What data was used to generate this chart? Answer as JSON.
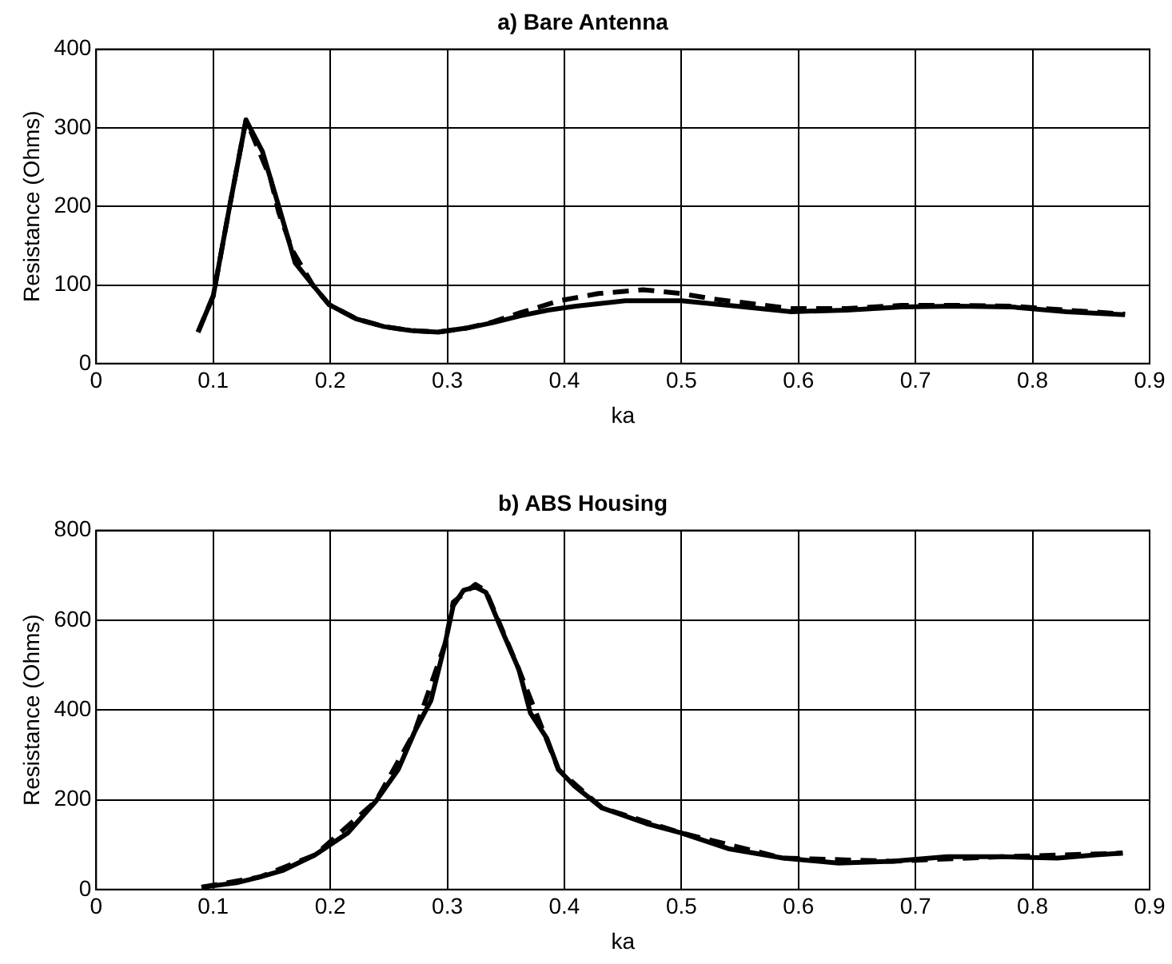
{
  "chart_data": [
    {
      "type": "line",
      "title": "a) Bare Antenna",
      "xlabel": "ka",
      "ylabel": "Resistance (Ohms)",
      "xlim": [
        0,
        0.9
      ],
      "xticks": [
        0,
        0.1,
        0.2,
        0.3,
        0.4,
        0.5,
        0.6,
        0.7,
        0.8,
        0.9
      ],
      "ylim": [
        0,
        400
      ],
      "yticks": [
        0,
        100,
        200,
        300,
        400
      ],
      "grid": true,
      "series": [
        {
          "color": "#000000",
          "line_style": "solid",
          "x": [
            0.087,
            0.1,
            0.114,
            0.128,
            0.142,
            0.156,
            0.17,
            0.185,
            0.199,
            0.222,
            0.246,
            0.269,
            0.292,
            0.316,
            0.339,
            0.363,
            0.386,
            0.41,
            0.452,
            0.5,
            0.547,
            0.594,
            0.641,
            0.688,
            0.735,
            0.782,
            0.829,
            0.879
          ],
          "values": [
            40,
            86,
            200,
            310,
            270,
            200,
            128,
            100,
            75,
            57,
            47,
            42,
            40,
            45,
            52,
            61,
            68,
            73,
            80,
            80,
            73,
            66,
            68,
            72,
            73,
            72,
            66,
            62
          ]
        },
        {
          "color": "#000000",
          "line_style": "dashed",
          "x": [
            0.087,
            0.1,
            0.114,
            0.128,
            0.149,
            0.156,
            0.168,
            0.185,
            0.199,
            0.222,
            0.246,
            0.269,
            0.292,
            0.316,
            0.339,
            0.363,
            0.396,
            0.429,
            0.467,
            0.5,
            0.528,
            0.594,
            0.641,
            0.688,
            0.735,
            0.782,
            0.829,
            0.879
          ],
          "values": [
            40,
            86,
            200,
            310,
            235,
            192,
            143,
            100,
            75,
            57,
            47,
            42,
            40,
            45,
            53,
            65,
            80,
            89,
            94,
            89,
            82,
            70,
            70,
            74,
            74,
            73,
            68,
            63
          ]
        }
      ]
    },
    {
      "type": "line",
      "title": "b) ABS Housing",
      "xlabel": "ka",
      "ylabel": "Resistance (Ohms)",
      "xlim": [
        0,
        0.9
      ],
      "xticks": [
        0,
        0.1,
        0.2,
        0.3,
        0.4,
        0.5,
        0.6,
        0.7,
        0.8,
        0.9
      ],
      "ylim": [
        0,
        800
      ],
      "yticks": [
        0,
        200,
        400,
        600,
        800
      ],
      "grid": true,
      "series": [
        {
          "color": "#000000",
          "line_style": "solid",
          "x": [
            0.09,
            0.12,
            0.14,
            0.159,
            0.187,
            0.215,
            0.239,
            0.258,
            0.272,
            0.286,
            0.298,
            0.305,
            0.314,
            0.324,
            0.333,
            0.347,
            0.361,
            0.371,
            0.385,
            0.395,
            0.408,
            0.432,
            0.47,
            0.5,
            0.54,
            0.587,
            0.634,
            0.68,
            0.727,
            0.774,
            0.821,
            0.854,
            0.877
          ],
          "values": [
            5,
            15,
            28,
            42,
            77,
            126,
            197,
            267,
            351,
            421,
            547,
            632,
            667,
            674,
            662,
            575,
            491,
            393,
            337,
            267,
            232,
            182,
            147,
            126,
            91,
            70,
            59,
            63,
            73,
            73,
            70,
            77,
            81
          ]
        },
        {
          "color": "#000000",
          "line_style": "dashed",
          "x": [
            0.09,
            0.14,
            0.187,
            0.239,
            0.272,
            0.298,
            0.305,
            0.324,
            0.333,
            0.361,
            0.395,
            0.432,
            0.5,
            0.587,
            0.68,
            0.774,
            0.877
          ],
          "values": [
            5,
            28,
            77,
            197,
            351,
            547,
            640,
            680,
            665,
            491,
            267,
            182,
            126,
            70,
            63,
            73,
            81
          ]
        }
      ]
    }
  ]
}
